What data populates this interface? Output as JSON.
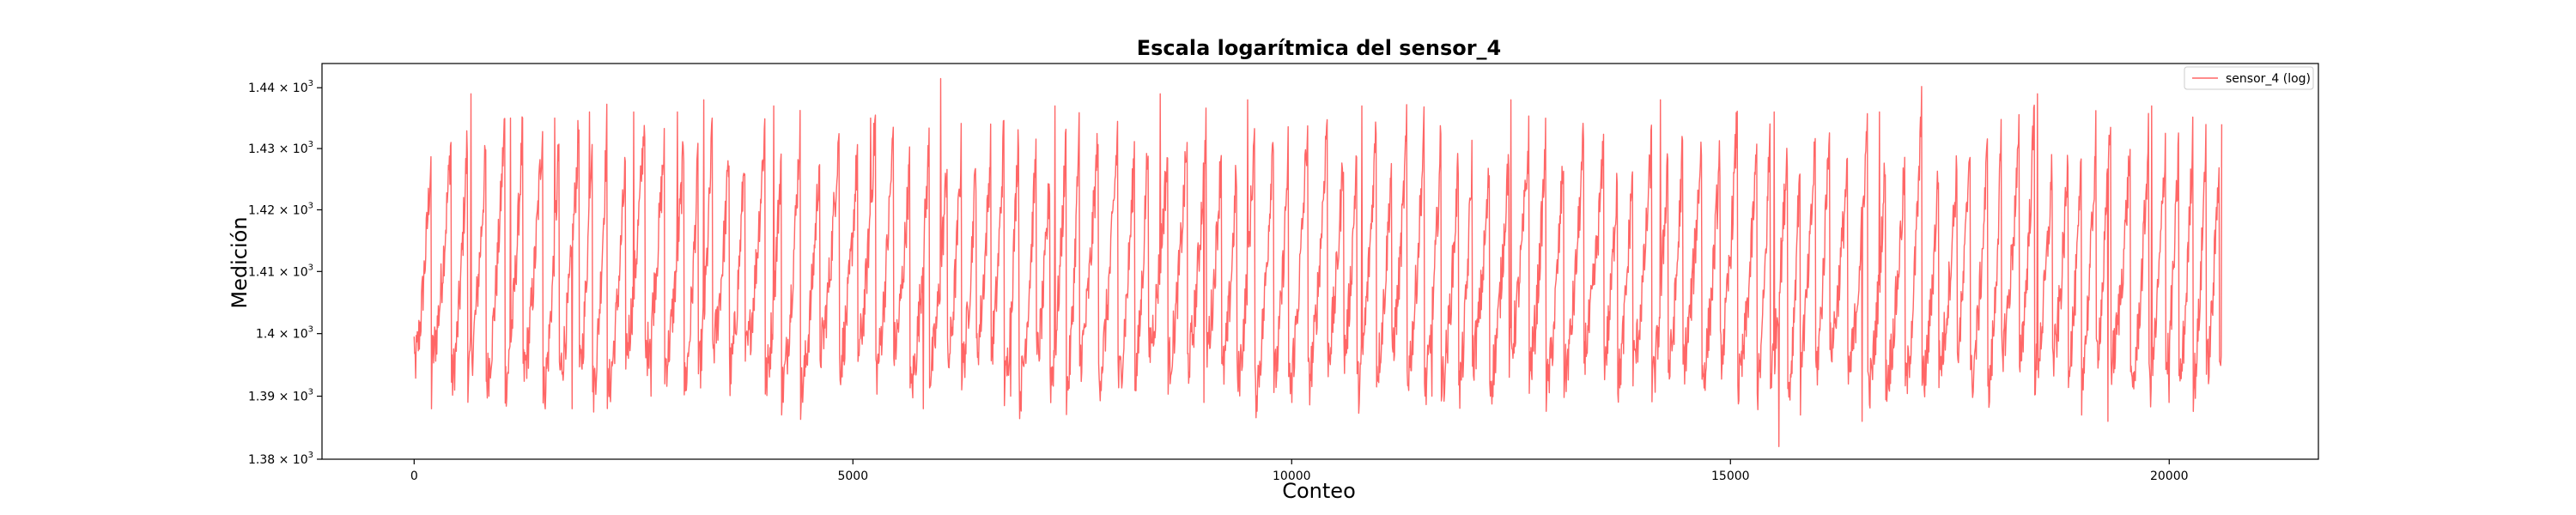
{
  "chart_data": {
    "type": "line",
    "title": "Escala logarítmica del sensor_4",
    "xlabel": "Conteo",
    "ylabel": "Medición",
    "y_scale": "log",
    "xlim": [
      -1050,
      21700
    ],
    "ylim": [
      1380,
      1444
    ],
    "x_ticks": [
      0,
      5000,
      10000,
      15000,
      20000
    ],
    "x_tick_labels": [
      "0",
      "5000",
      "10000",
      "15000",
      "20000"
    ],
    "y_ticks": [
      1380,
      1390,
      1400,
      1410,
      1420,
      1430,
      1440
    ],
    "y_tick_labels": [
      {
        "mantissa": "1.38",
        "base": "10",
        "exp": "3"
      },
      {
        "mantissa": "1.39",
        "base": "10",
        "exp": "3"
      },
      {
        "mantissa": "1.4",
        "base": "10",
        "exp": "3"
      },
      {
        "mantissa": "1.41",
        "base": "10",
        "exp": "3"
      },
      {
        "mantissa": "1.42",
        "base": "10",
        "exp": "3"
      },
      {
        "mantissa": "1.43",
        "base": "10",
        "exp": "3"
      },
      {
        "mantissa": "1.44",
        "base": "10",
        "exp": "3"
      }
    ],
    "grid": false,
    "legend_position": "top-right",
    "series": [
      {
        "name": "sensor_4 (log)",
        "color": "#ff6666",
        "x_range": [
          0,
          20600
        ],
        "approx_cycle_length": 180,
        "typical_range": [
          1392,
          1433
        ],
        "min": {
          "x": 15550,
          "y": 1382
        },
        "max": {
          "x": 6000,
          "y": 1441.5
        },
        "sample_peaks": [
          {
            "x": 200,
            "y": 1433
          },
          {
            "x": 650,
            "y": 1439
          },
          {
            "x": 1100,
            "y": 1435
          },
          {
            "x": 1600,
            "y": 1435
          },
          {
            "x": 2000,
            "y": 1436
          },
          {
            "x": 2500,
            "y": 1436
          },
          {
            "x": 3000,
            "y": 1436
          },
          {
            "x": 3300,
            "y": 1438
          },
          {
            "x": 4100,
            "y": 1437
          },
          {
            "x": 5200,
            "y": 1435
          },
          {
            "x": 6000,
            "y": 1441.5
          },
          {
            "x": 7300,
            "y": 1437
          },
          {
            "x": 8500,
            "y": 1439
          },
          {
            "x": 9500,
            "y": 1438
          },
          {
            "x": 10800,
            "y": 1437
          },
          {
            "x": 12500,
            "y": 1438
          },
          {
            "x": 14200,
            "y": 1438
          },
          {
            "x": 15500,
            "y": 1436
          },
          {
            "x": 16700,
            "y": 1436
          },
          {
            "x": 18500,
            "y": 1439
          },
          {
            "x": 19800,
            "y": 1437
          },
          {
            "x": 20600,
            "y": 1434
          }
        ],
        "sample_troughs": [
          {
            "x": 200,
            "y": 1388
          },
          {
            "x": 1800,
            "y": 1388
          },
          {
            "x": 2700,
            "y": 1390
          },
          {
            "x": 5800,
            "y": 1388
          },
          {
            "x": 6800,
            "y": 1390
          },
          {
            "x": 9000,
            "y": 1389
          },
          {
            "x": 10000,
            "y": 1389
          },
          {
            "x": 11600,
            "y": 1390
          },
          {
            "x": 15550,
            "y": 1382
          },
          {
            "x": 15800,
            "y": 1387
          },
          {
            "x": 16500,
            "y": 1386
          },
          {
            "x": 19000,
            "y": 1387
          },
          {
            "x": 19300,
            "y": 1386
          },
          {
            "x": 20000,
            "y": 1389
          }
        ]
      }
    ]
  }
}
